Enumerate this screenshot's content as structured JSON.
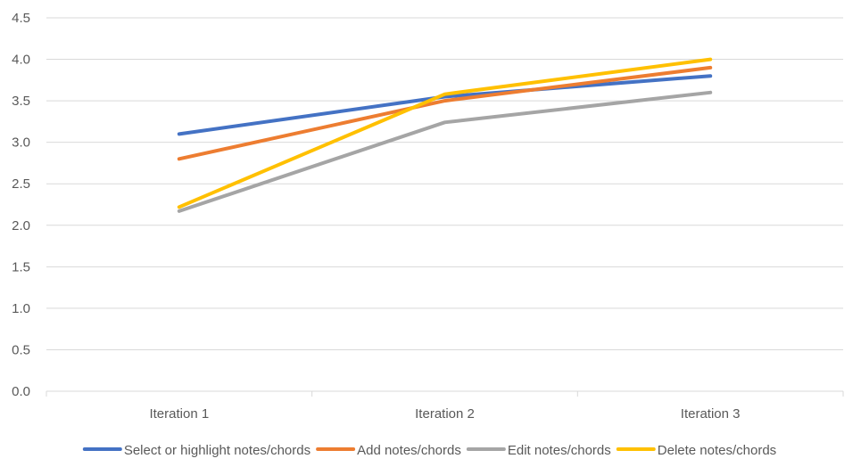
{
  "chart_data": {
    "type": "line",
    "categories": [
      "Iteration 1",
      "Iteration 2",
      "Iteration 3"
    ],
    "ylim": [
      0,
      4.5
    ],
    "yticks": [
      "0.0",
      "0.5",
      "1.0",
      "1.5",
      "2.0",
      "2.5",
      "3.0",
      "3.5",
      "4.0",
      "4.5"
    ],
    "ytick_values": [
      0,
      0.5,
      1.0,
      1.5,
      2.0,
      2.5,
      3.0,
      3.5,
      4.0,
      4.5
    ],
    "grid": true,
    "legend_position": "bottom",
    "series": [
      {
        "name": "Select or highlight notes/chords",
        "color": "#4472C4",
        "values": [
          3.1,
          3.55,
          3.8
        ]
      },
      {
        "name": "Add notes/chords",
        "color": "#ED7D31",
        "values": [
          2.8,
          3.5,
          3.9
        ]
      },
      {
        "name": "Edit notes/chords",
        "color": "#A5A5A5",
        "values": [
          2.17,
          3.24,
          3.6
        ]
      },
      {
        "name": "Delete notes/chords",
        "color": "#FFC000",
        "values": [
          2.22,
          3.58,
          4.0
        ]
      }
    ]
  }
}
